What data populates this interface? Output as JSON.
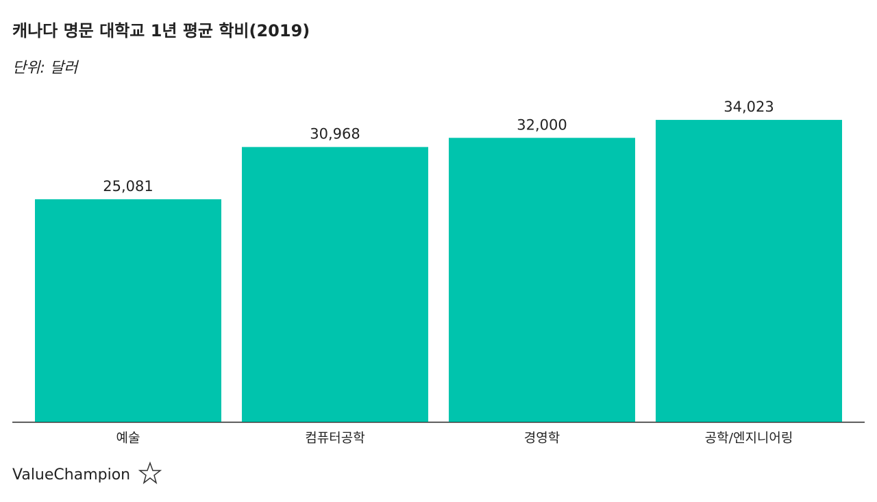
{
  "chart_data": {
    "type": "bar",
    "title": "캐나다 명문 대학교 1년 평균 학비(2019)",
    "subtitle": "단위: 달러",
    "categories": [
      "예술",
      "컴퓨터공학",
      "경영학",
      "공학/엔지니어링"
    ],
    "values": [
      25081,
      30968,
      32000,
      34023
    ],
    "value_labels": [
      "25,081",
      "30,968",
      "32,000",
      "34,023"
    ],
    "color": "#00c4ad",
    "ylim": [
      0,
      37500
    ],
    "grid": false
  },
  "brand": "ValueChampion"
}
